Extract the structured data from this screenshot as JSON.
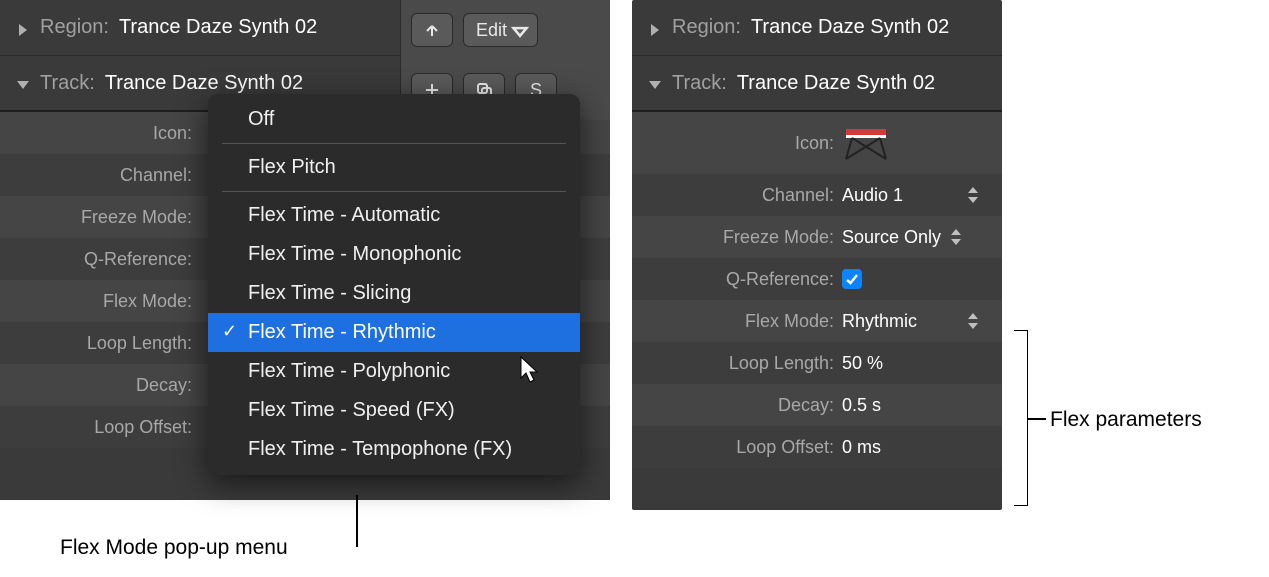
{
  "left": {
    "region_label": "Region:",
    "region_value": "Trance Daze Synth 02",
    "track_label": "Track:",
    "track_value": "Trance Daze Synth 02",
    "toolbar": {
      "edit_label": "Edit",
      "s_label": "S"
    },
    "params": {
      "icon_label": "Icon:",
      "channel_label": "Channel:",
      "freeze_label": "Freeze Mode:",
      "qref_label": "Q-Reference:",
      "flex_label": "Flex Mode:",
      "loop_len_label": "Loop Length:",
      "decay_label": "Decay:",
      "loop_off_label": "Loop Offset:"
    }
  },
  "popup": {
    "items": [
      "Off",
      "Flex Pitch",
      "Flex Time - Automatic",
      "Flex Time - Monophonic",
      "Flex Time - Slicing",
      "Flex Time - Rhythmic",
      "Flex Time - Polyphonic",
      "Flex Time - Speed (FX)",
      "Flex Time - Tempophone (FX)"
    ],
    "selected_index": 5,
    "separators_after": [
      0,
      1
    ]
  },
  "right": {
    "region_label": "Region:",
    "region_value": "Trance Daze Synth 02",
    "track_label": "Track:",
    "track_value": "Trance Daze Synth 02",
    "params": {
      "icon_label": "Icon:",
      "channel_label": "Channel:",
      "channel_value": "Audio 1",
      "freeze_label": "Freeze Mode:",
      "freeze_value": "Source Only",
      "qref_label": "Q-Reference:",
      "qref_checked": true,
      "flex_label": "Flex Mode:",
      "flex_value": "Rhythmic",
      "loop_len_label": "Loop Length:",
      "loop_len_value": "50 %",
      "decay_label": "Decay:",
      "decay_value": "0.5 s",
      "loop_off_label": "Loop Offset:",
      "loop_off_value": "0 ms"
    }
  },
  "annotations": {
    "popup_label": "Flex Mode pop-up menu",
    "bracket_label": "Flex parameters"
  },
  "colors": {
    "panel_bg": "#3a3a3a",
    "row_odd": "#454545",
    "row_even": "#3d3d3d",
    "popup_bg": "#2b2b2b",
    "popup_sel": "#1e6fe0",
    "checkbox_bg": "#0a84ff",
    "text_label": "#a8a8a8",
    "text_value": "#ffffff",
    "keyboard_red": "#d33a3a"
  }
}
